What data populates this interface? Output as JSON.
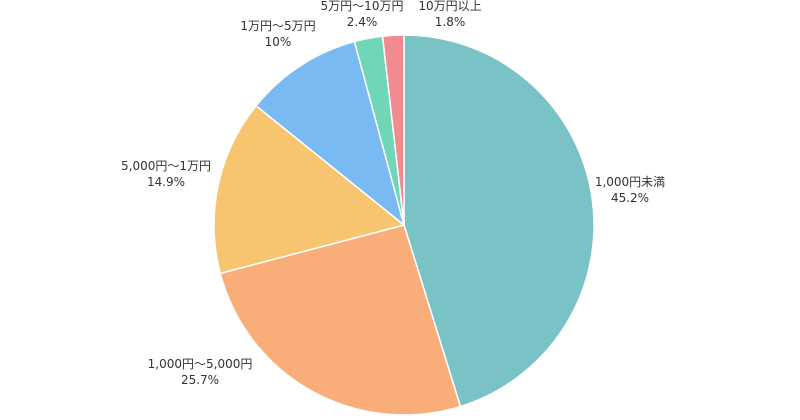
{
  "chart_data": {
    "type": "pie",
    "start_angle_deg": 0,
    "direction": "clockwise",
    "slices": [
      {
        "category": "1,000円未満",
        "value": 45.2,
        "display": "45.2%",
        "color": "#79C2C6"
      },
      {
        "category": "1,000円～5,000円",
        "value": 25.7,
        "display": "25.7%",
        "color": "#F9AE7A"
      },
      {
        "category": "5,000円～1万円",
        "value": 14.9,
        "display": "14.9%",
        "color": "#F7C56F"
      },
      {
        "category": "1万円～5万円",
        "value": 10,
        "display": "10%",
        "color": "#7ABAF2"
      },
      {
        "category": "5万円～10万円",
        "value": 2.4,
        "display": "2.4%",
        "color": "#6FD6B8"
      },
      {
        "category": "10万円以上",
        "value": 1.8,
        "display": "1.8%",
        "color": "#F08C8F"
      }
    ]
  }
}
